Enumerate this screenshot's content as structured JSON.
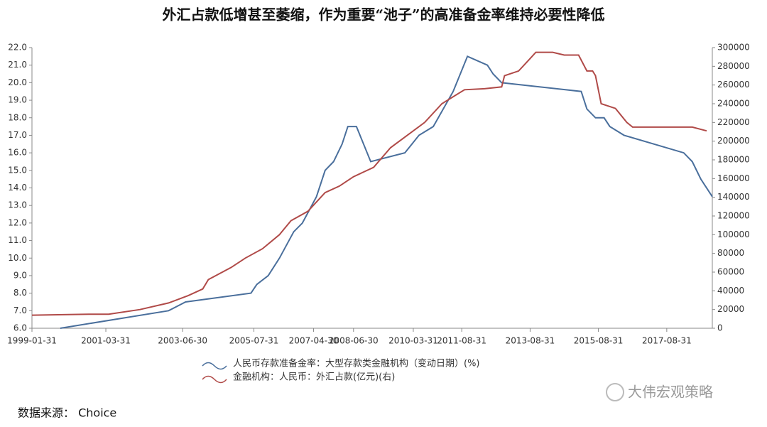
{
  "chart_data": {
    "type": "line",
    "title": "外汇占款低增甚至萎缩，作为重要“池子”的高准备金率维持必要性降低",
    "xlim": [
      "1999-01-31",
      "2018-12-31"
    ],
    "xticks": [
      "1999-01-31",
      "2001-03-31",
      "2003-06-30",
      "2005-07-31",
      "2007-04-30",
      "2008-06-30",
      "2010-03-31",
      "2011-08-31",
      "2013-08-31",
      "2015-08-31",
      "2017-08-31"
    ],
    "ylim": [
      6,
      22
    ],
    "yticks": [
      {
        "value": 6,
        "label": "6.0"
      },
      {
        "value": 7,
        "label": "7.0"
      },
      {
        "value": 8,
        "label": "8.0"
      },
      {
        "value": 9,
        "label": "9.0"
      },
      {
        "value": 10,
        "label": "10.0"
      },
      {
        "value": 11,
        "label": "11.0"
      },
      {
        "value": 12,
        "label": "12.0"
      },
      {
        "value": 13,
        "label": "13.0"
      },
      {
        "value": 14,
        "label": "14.0"
      },
      {
        "value": 15,
        "label": "15.0"
      },
      {
        "value": 16,
        "label": "16.0"
      },
      {
        "value": 17,
        "label": "17.0"
      },
      {
        "value": 18,
        "label": "18.0"
      },
      {
        "value": 19,
        "label": "19.0"
      },
      {
        "value": 20,
        "label": "20.0"
      },
      {
        "value": 21,
        "label": "21.0"
      },
      {
        "value": 22,
        "label": "22.0"
      }
    ],
    "y2lim": [
      0,
      300000
    ],
    "y2ticks": [
      0,
      20000,
      40000,
      60000,
      80000,
      100000,
      120000,
      140000,
      160000,
      180000,
      200000,
      220000,
      240000,
      260000,
      280000,
      300000
    ],
    "grid": false,
    "series": [
      {
        "name": "人民币存款准备金率：大型存款类金融机构（变动日期）(%)",
        "color": "#4a6f9c",
        "x": [
          "1999-11-30",
          "2003-01-31",
          "2003-07-31",
          "2005-06-30",
          "2005-08-31",
          "2005-12-31",
          "2006-04-30",
          "2006-09-30",
          "2006-12-31",
          "2007-05-31",
          "2007-08-31",
          "2007-11-30",
          "2008-02-29",
          "2008-04-30",
          "2008-07-31",
          "2008-12-31",
          "2009-12-31",
          "2010-05-31",
          "2010-10-31",
          "2011-05-31",
          "2011-10-31",
          "2012-05-31",
          "2012-07-31",
          "2012-10-31",
          "2015-02-28",
          "2015-04-30",
          "2015-07-31",
          "2015-10-31",
          "2015-12-31",
          "2016-05-31",
          "2018-02-28",
          "2018-05-31",
          "2018-08-31",
          "2018-12-31"
        ],
        "values": [
          6.0,
          7.0,
          7.5,
          8.0,
          8.5,
          9.0,
          10.0,
          11.5,
          12.0,
          13.5,
          15.0,
          15.5,
          16.5,
          17.5,
          17.5,
          15.5,
          16.0,
          17.0,
          17.5,
          19.5,
          21.5,
          21.0,
          20.5,
          20.0,
          19.5,
          18.5,
          18.0,
          18.0,
          17.5,
          17.0,
          16.0,
          15.5,
          14.5,
          13.5
        ]
      },
      {
        "name": "金融机构：人民币：外汇占款(亿元)(右)",
        "color": "#b04a48",
        "axis": "y2",
        "x": [
          "1999-01-31",
          "2000-09-30",
          "2001-04-30",
          "2002-03-31",
          "2003-01-31",
          "2003-08-31",
          "2004-01-31",
          "2004-03-31",
          "2004-11-30",
          "2005-04-30",
          "2005-10-31",
          "2006-04-30",
          "2006-08-31",
          "2007-02-28",
          "2007-08-31",
          "2008-01-31",
          "2008-06-30",
          "2009-01-31",
          "2009-07-31",
          "2010-07-31",
          "2011-01-31",
          "2011-09-30",
          "2012-04-30",
          "2012-10-31",
          "2012-11-30",
          "2013-04-30",
          "2013-07-31",
          "2013-10-31",
          "2014-04-30",
          "2014-08-31",
          "2015-01-31",
          "2015-04-30",
          "2015-06-30",
          "2015-07-31",
          "2015-09-30",
          "2016-02-29",
          "2016-06-30",
          "2016-08-31",
          "2018-05-31",
          "2018-10-31"
        ],
        "values": [
          14000,
          15000,
          15000,
          20000,
          27000,
          35000,
          42000,
          52000,
          65000,
          75000,
          85000,
          100000,
          115000,
          125000,
          145000,
          152000,
          162000,
          172000,
          193000,
          220000,
          240000,
          255000,
          256000,
          258000,
          270000,
          275000,
          285000,
          295000,
          295000,
          292000,
          292000,
          275000,
          275000,
          270000,
          240000,
          235000,
          220000,
          215000,
          215000,
          211000
        ]
      }
    ]
  },
  "source": "数据来源：  Choice",
  "watermark": "大伟宏观策略"
}
